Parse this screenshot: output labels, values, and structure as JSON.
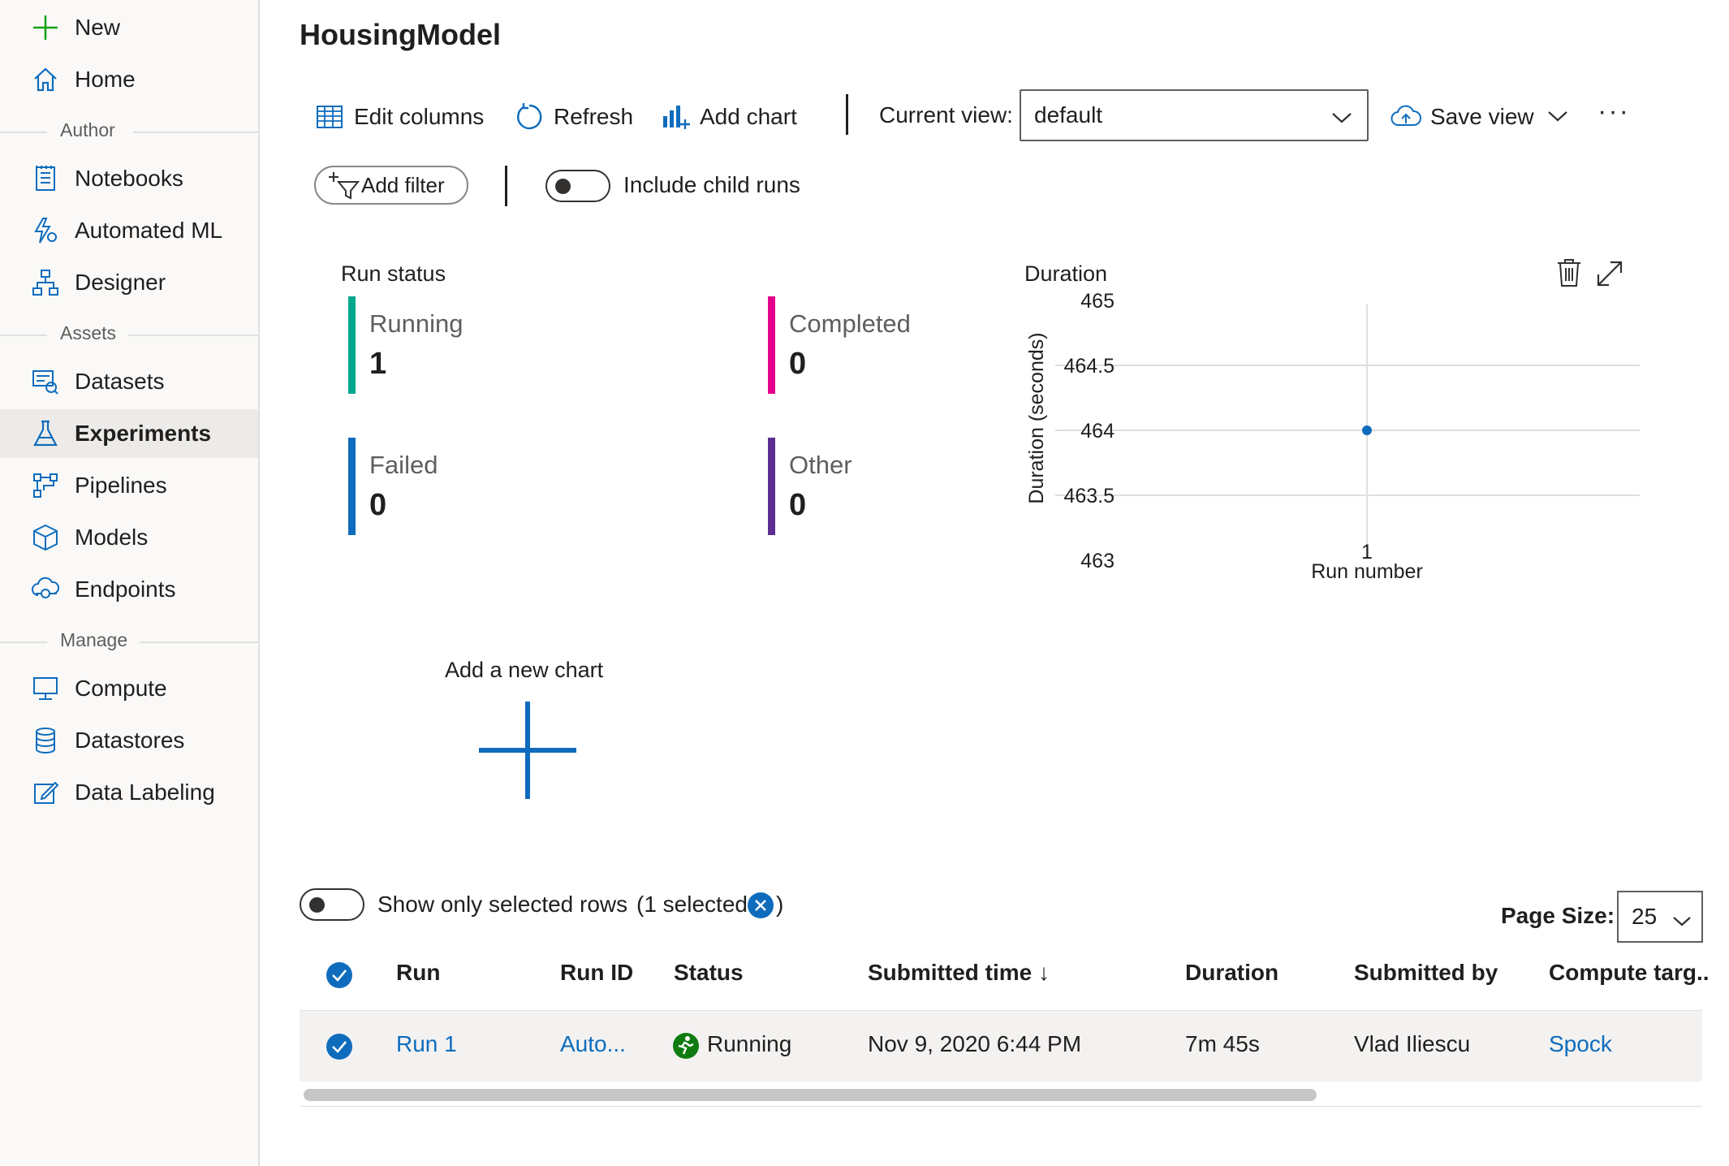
{
  "sidebar": {
    "new_label": "New",
    "home_label": "Home",
    "sections": {
      "author": "Author",
      "assets": "Assets",
      "manage": "Manage"
    },
    "items": {
      "notebooks": "Notebooks",
      "automated_ml": "Automated ML",
      "designer": "Designer",
      "datasets": "Datasets",
      "experiments": "Experiments",
      "pipelines": "Pipelines",
      "models": "Models",
      "endpoints": "Endpoints",
      "compute": "Compute",
      "datastores": "Datastores",
      "data_labeling": "Data Labeling"
    },
    "active_item": "Experiments"
  },
  "page": {
    "title": "HousingModel"
  },
  "toolbar": {
    "edit_columns": "Edit columns",
    "refresh": "Refresh",
    "add_chart": "Add chart",
    "current_view_label": "Current view:",
    "current_view_value": "default",
    "save_view": "Save view",
    "more": "···",
    "add_filter": "Add filter",
    "include_child_runs": "Include child runs"
  },
  "run_status": {
    "title": "Run status",
    "cards": [
      {
        "label": "Running",
        "value": "1",
        "color": "#00a78e"
      },
      {
        "label": "Completed",
        "value": "0",
        "color": "#e3008c"
      },
      {
        "label": "Failed",
        "value": "0",
        "color": "#0f6cbd"
      },
      {
        "label": "Other",
        "value": "0",
        "color": "#5c2e91"
      }
    ]
  },
  "chart_data": {
    "type": "scatter",
    "title": "Duration",
    "xlabel": "Run number",
    "ylabel": "Duration (seconds)",
    "x": [
      1
    ],
    "y": [
      464
    ],
    "ylim": [
      463,
      465
    ],
    "y_ticks": [
      "465",
      "464.5",
      "464",
      "463.5",
      "463"
    ],
    "x_ticks": [
      "1"
    ],
    "point_color": "#0f6cbd",
    "grid": true
  },
  "add_new_chart": {
    "label": "Add a new chart"
  },
  "grid": {
    "show_selected_label": "Show only selected rows",
    "selected_count_label": "(1 selected",
    "selected_close": ")",
    "page_size_label": "Page Size:",
    "page_size_value": "25",
    "columns": [
      "Run",
      "Run ID",
      "Status",
      "Submitted time ↓",
      "Duration",
      "Submitted by",
      "Compute targ.."
    ],
    "rows": [
      {
        "run": "Run 1",
        "run_id": "Auto...",
        "status": "Running",
        "submitted_time": "Nov 9, 2020 6:44 PM",
        "duration": "7m 45s",
        "submitted_by": "Vlad Iliescu",
        "compute_target": "Spock"
      }
    ]
  },
  "colors": {
    "accent": "#0f6cbd",
    "running_green": "#107c10",
    "new_plus": "#13a10e"
  }
}
